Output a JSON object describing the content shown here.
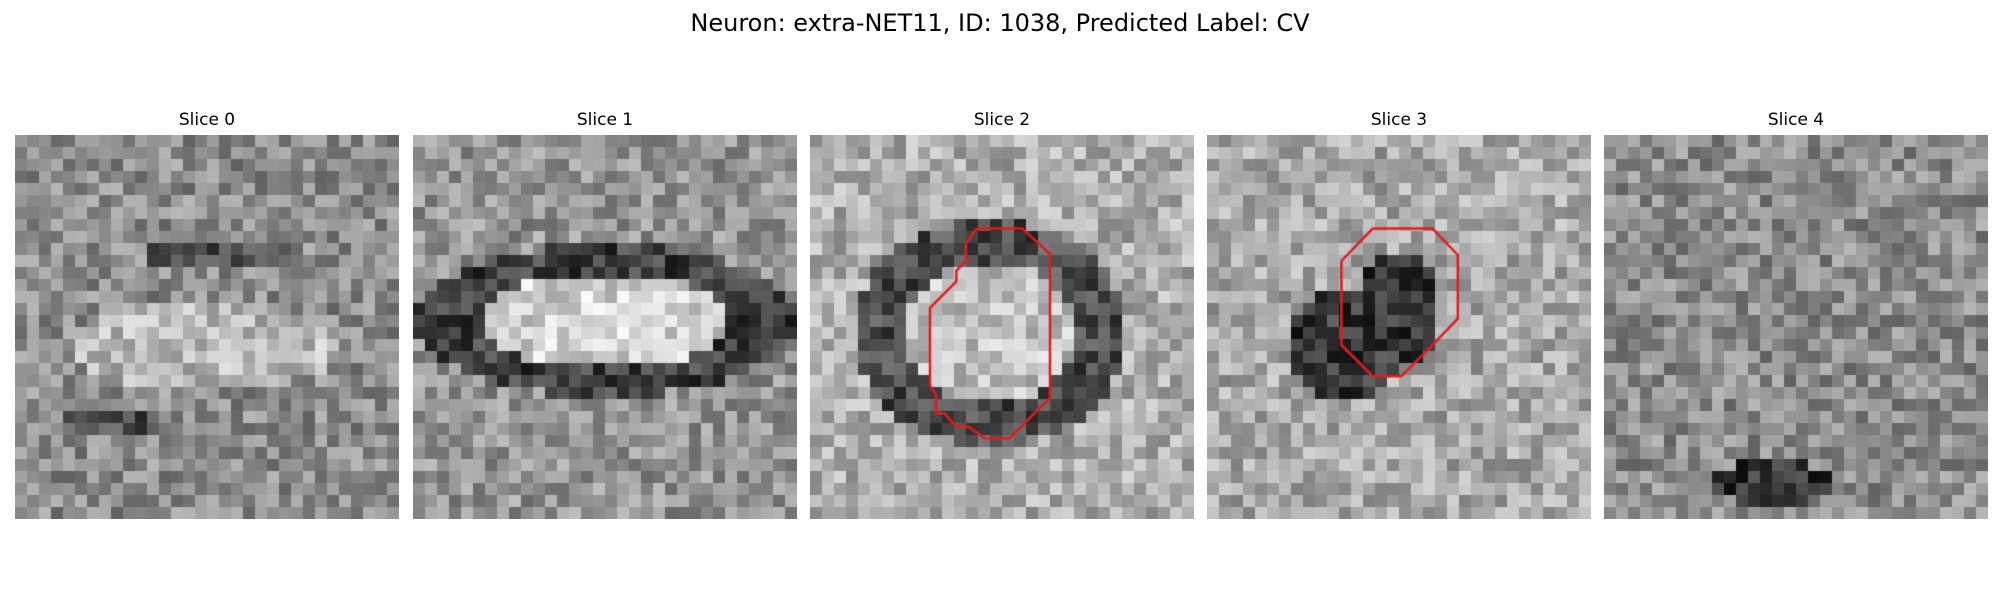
{
  "figure": {
    "title": "Neuron: extra-NET11, ID: 1038, Predicted Label: CV"
  },
  "slices": [
    {
      "label": "Slice 0",
      "pattern": "smooth-blob",
      "contour": []
    },
    {
      "label": "Slice 1",
      "pattern": "ring",
      "contour": []
    },
    {
      "label": "Slice 2",
      "pattern": "ring-small",
      "contour": [
        [
          13.9,
          7.8
        ],
        [
          17.7,
          7.8
        ],
        [
          20.0,
          9.9
        ],
        [
          20.0,
          21.9
        ],
        [
          16.6,
          25.3
        ],
        [
          14.6,
          25.3
        ],
        [
          13.2,
          24.3
        ],
        [
          12.2,
          24.3
        ],
        [
          11.2,
          23.2
        ],
        [
          10.5,
          23.2
        ],
        [
          10.5,
          21.6
        ],
        [
          10.0,
          20.9
        ],
        [
          10.0,
          14.4
        ],
        [
          12.2,
          12.2
        ],
        [
          12.2,
          11.3
        ],
        [
          13.0,
          10.5
        ],
        [
          13.0,
          9.0
        ],
        [
          13.9,
          7.8
        ]
      ]
    },
    {
      "label": "Slice 3",
      "pattern": "dark-blob",
      "contour": [
        [
          15.9,
          7.8
        ],
        [
          18.8,
          7.8
        ],
        [
          20.9,
          10.0
        ],
        [
          20.9,
          15.3
        ],
        [
          18.4,
          17.9
        ],
        [
          16.2,
          20.1
        ],
        [
          13.8,
          20.1
        ],
        [
          11.7,
          18.0
        ],
        [
          11.2,
          17.5
        ],
        [
          11.2,
          10.5
        ],
        [
          13.8,
          7.8
        ],
        [
          15.9,
          7.8
        ]
      ]
    },
    {
      "label": "Slice 4",
      "pattern": "noise-bottom",
      "contour": []
    }
  ],
  "style": {
    "contour_color": "#e41a1c"
  }
}
